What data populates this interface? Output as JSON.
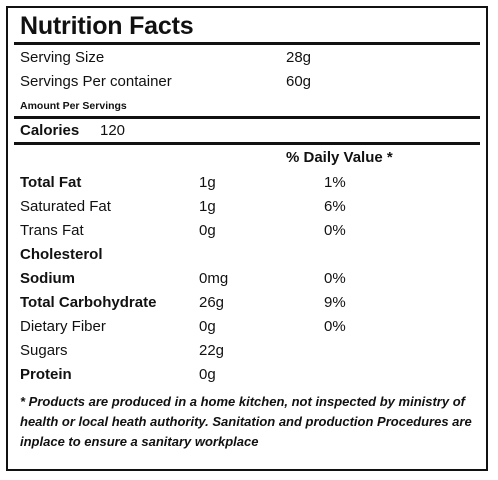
{
  "title": "Nutrition Facts",
  "serving": {
    "size_label": "Serving Size",
    "size_value": "28g",
    "per_container_label": "Servings Per container",
    "per_container_value": "60g"
  },
  "amount_per_label": "Amount Per Servings",
  "calories": {
    "label": "Calories",
    "value": "120"
  },
  "daily_value_header": "% Daily Value *",
  "nutrients": [
    {
      "name": "Total Fat",
      "amount": "1g",
      "dv": "1%"
    },
    {
      "name": "Saturated Fat",
      "amount": "1g",
      "dv": "6%"
    },
    {
      "name": "Trans Fat",
      "amount": "0g",
      "dv": "0%"
    },
    {
      "name": "Cholesterol",
      "amount": "",
      "dv": ""
    },
    {
      "name": "Sodium",
      "amount": "0mg",
      "dv": "0%"
    },
    {
      "name": "Total Carbohydrate",
      "amount": "26g",
      "dv": "9%"
    },
    {
      "name": "Dietary Fiber",
      "amount": "0g",
      "dv": "0%"
    },
    {
      "name": "Sugars",
      "amount": "22g",
      "dv": ""
    },
    {
      "name": "Protein",
      "amount": "0g",
      "dv": ""
    }
  ],
  "footnote": "* Products are produced in a home kitchen, not inspected by ministry of health or local heath authority. Sanitation and production Procedures are inplace to ensure  a sanitary workplace"
}
